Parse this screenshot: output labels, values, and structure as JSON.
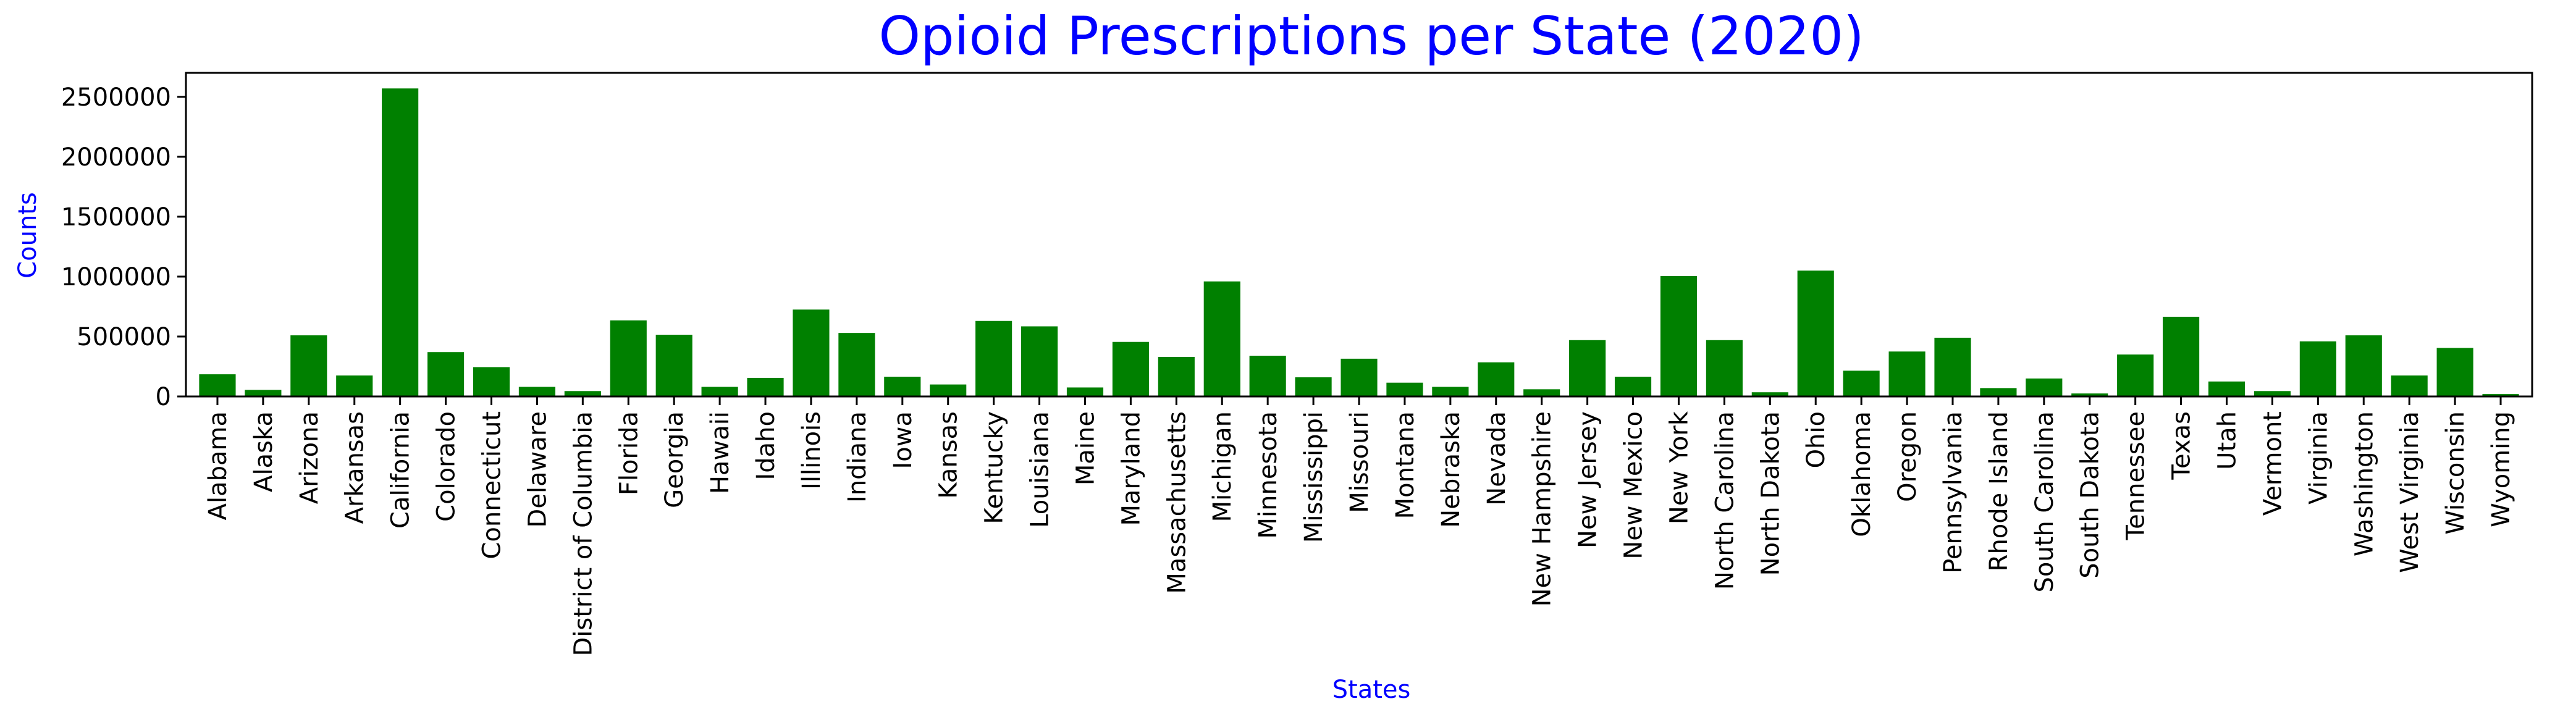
{
  "chart_data": {
    "type": "bar",
    "title": "Opioid Prescriptions per State (2020)",
    "xlabel": "States",
    "ylabel": "Counts",
    "ylim": [
      0,
      2700000
    ],
    "yticks": [
      0,
      500000,
      1000000,
      1500000,
      2000000,
      2500000
    ],
    "ytick_labels": [
      "0",
      "500000",
      "1000000",
      "1500000",
      "2000000",
      "2500000"
    ],
    "grid": false,
    "legend": "none",
    "colors": {
      "bar": "#008000",
      "title": "#0000ff",
      "axis_label": "#0000ff",
      "axis": "#000000",
      "tick_label": "#000000"
    },
    "categories": [
      "Alabama",
      "Alaska",
      "Arizona",
      "Arkansas",
      "California",
      "Colorado",
      "Connecticut",
      "Delaware",
      "District of Columbia",
      "Florida",
      "Georgia",
      "Hawaii",
      "Idaho",
      "Illinois",
      "Indiana",
      "Iowa",
      "Kansas",
      "Kentucky",
      "Louisiana",
      "Maine",
      "Maryland",
      "Massachusetts",
      "Michigan",
      "Minnesota",
      "Mississippi",
      "Missouri",
      "Montana",
      "Nebraska",
      "Nevada",
      "New Hampshire",
      "New Jersey",
      "New Mexico",
      "New York",
      "North Carolina",
      "North Dakota",
      "Ohio",
      "Oklahoma",
      "Oregon",
      "Pennsylvania",
      "Rhode Island",
      "South Carolina",
      "South Dakota",
      "Tennessee",
      "Texas",
      "Utah",
      "Vermont",
      "Virginia",
      "Washington",
      "West Virginia",
      "Wisconsin",
      "Wyoming"
    ],
    "values": [
      185000,
      55000,
      510000,
      175000,
      2570000,
      370000,
      245000,
      80000,
      45000,
      635000,
      515000,
      80000,
      155000,
      725000,
      530000,
      165000,
      100000,
      630000,
      585000,
      75000,
      455000,
      330000,
      960000,
      340000,
      160000,
      315000,
      115000,
      80000,
      285000,
      60000,
      470000,
      165000,
      1005000,
      470000,
      35000,
      1050000,
      215000,
      375000,
      490000,
      70000,
      150000,
      25000,
      350000,
      665000,
      125000,
      45000,
      460000,
      510000,
      175000,
      405000,
      20000
    ]
  }
}
